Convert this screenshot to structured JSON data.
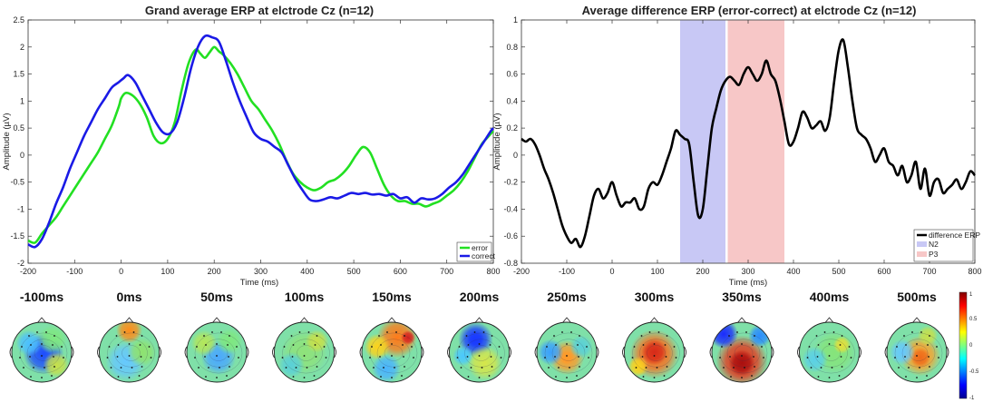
{
  "chart_data": [
    {
      "type": "line",
      "title": "Grand average ERP at elctrode Cz (n=12)",
      "xlabel": "Time (ms)",
      "ylabel": "Amplitude (µV)",
      "xlim": [
        -200,
        800
      ],
      "ylim": [
        -2,
        2.5
      ],
      "xticks": [
        "-200",
        "-100",
        "0",
        "100",
        "200",
        "300",
        "400",
        "500",
        "600",
        "700",
        "800"
      ],
      "yticks": [
        "-2",
        "-1.5",
        "-1",
        "-0.5",
        "0",
        "0.5",
        "1",
        "1.5",
        "2",
        "2.5"
      ],
      "legend_position": "bottom-right",
      "series": [
        {
          "name": "error",
          "color": "#22e022",
          "x": [
            -200,
            -185,
            -170,
            -155,
            -140,
            -125,
            -110,
            -95,
            -80,
            -65,
            -50,
            -35,
            -20,
            -5,
            0,
            10,
            25,
            40,
            55,
            70,
            85,
            100,
            115,
            130,
            145,
            160,
            170,
            180,
            190,
            200,
            210,
            220,
            235,
            250,
            265,
            280,
            295,
            310,
            325,
            340,
            355,
            370,
            385,
            400,
            415,
            430,
            445,
            460,
            475,
            490,
            505,
            520,
            535,
            550,
            565,
            580,
            595,
            610,
            625,
            640,
            655,
            670,
            685,
            700,
            715,
            730,
            745,
            760,
            775,
            790,
            800
          ],
          "values": [
            -1.58,
            -1.62,
            -1.45,
            -1.3,
            -1.15,
            -0.95,
            -0.75,
            -0.55,
            -0.35,
            -0.15,
            0.05,
            0.3,
            0.55,
            0.9,
            1.05,
            1.15,
            1.1,
            0.95,
            0.7,
            0.35,
            0.22,
            0.3,
            0.6,
            1.2,
            1.7,
            1.95,
            1.88,
            1.8,
            1.9,
            2.0,
            1.92,
            1.85,
            1.7,
            1.5,
            1.25,
            1.0,
            0.85,
            0.65,
            0.45,
            0.2,
            -0.1,
            -0.35,
            -0.5,
            -0.6,
            -0.65,
            -0.6,
            -0.5,
            -0.45,
            -0.35,
            -0.2,
            0.0,
            0.15,
            0.05,
            -0.25,
            -0.55,
            -0.75,
            -0.85,
            -0.85,
            -0.9,
            -0.9,
            -0.95,
            -0.9,
            -0.85,
            -0.75,
            -0.65,
            -0.5,
            -0.3,
            -0.05,
            0.2,
            0.35,
            0.45
          ]
        },
        {
          "name": "correct",
          "color": "#1a1ae6",
          "x": [
            -200,
            -185,
            -170,
            -155,
            -140,
            -125,
            -110,
            -95,
            -80,
            -65,
            -50,
            -35,
            -20,
            -5,
            5,
            15,
            30,
            45,
            60,
            75,
            90,
            105,
            120,
            135,
            150,
            165,
            180,
            195,
            210,
            225,
            240,
            255,
            270,
            285,
            300,
            315,
            330,
            345,
            360,
            375,
            390,
            405,
            420,
            435,
            450,
            465,
            480,
            495,
            510,
            525,
            540,
            555,
            570,
            585,
            600,
            615,
            630,
            645,
            660,
            675,
            690,
            705,
            720,
            735,
            750,
            765,
            780,
            795,
            800
          ],
          "values": [
            -1.65,
            -1.7,
            -1.55,
            -1.25,
            -0.9,
            -0.6,
            -0.25,
            0.05,
            0.35,
            0.6,
            0.85,
            1.05,
            1.25,
            1.35,
            1.42,
            1.48,
            1.35,
            1.1,
            0.85,
            0.6,
            0.42,
            0.4,
            0.6,
            1.05,
            1.6,
            2.0,
            2.2,
            2.18,
            2.1,
            1.75,
            1.35,
            1.0,
            0.7,
            0.42,
            0.3,
            0.25,
            0.15,
            0.05,
            -0.2,
            -0.45,
            -0.65,
            -0.82,
            -0.85,
            -0.82,
            -0.78,
            -0.8,
            -0.75,
            -0.7,
            -0.72,
            -0.7,
            -0.73,
            -0.72,
            -0.75,
            -0.72,
            -0.8,
            -0.78,
            -0.88,
            -0.8,
            -0.82,
            -0.8,
            -0.72,
            -0.6,
            -0.5,
            -0.35,
            -0.15,
            0.05,
            0.25,
            0.45,
            0.5
          ]
        }
      ]
    },
    {
      "type": "line",
      "title": "Average difference ERP (error-correct) at elctrode Cz (n=12)",
      "xlabel": "Time (ms)",
      "ylabel": "Amplitude (µV)",
      "xlim": [
        -200,
        800
      ],
      "ylim": [
        -0.8,
        1
      ],
      "xticks": [
        "-200",
        "-100",
        "0",
        "100",
        "200",
        "300",
        "400",
        "500",
        "600",
        "700",
        "800"
      ],
      "yticks": [
        "-0.8",
        "-0.6",
        "-0.4",
        "-0.2",
        "0",
        "0.2",
        "0.4",
        "0.6",
        "0.8",
        "1"
      ],
      "legend_position": "bottom-right",
      "shaded_regions": [
        {
          "name": "N2",
          "x_start": 150,
          "x_end": 250,
          "color": "#c8c8f5"
        },
        {
          "name": "P3",
          "x_start": 255,
          "x_end": 380,
          "color": "#f7c7c7"
        }
      ],
      "series": [
        {
          "name": "difference ERP",
          "color": "#000000",
          "x": [
            -200,
            -190,
            -180,
            -170,
            -160,
            -150,
            -140,
            -130,
            -120,
            -110,
            -100,
            -90,
            -80,
            -70,
            -60,
            -50,
            -40,
            -30,
            -20,
            -10,
            0,
            10,
            20,
            30,
            40,
            50,
            60,
            70,
            80,
            90,
            100,
            110,
            120,
            130,
            140,
            150,
            160,
            170,
            180,
            190,
            200,
            210,
            220,
            230,
            240,
            250,
            260,
            270,
            280,
            290,
            300,
            310,
            320,
            330,
            340,
            350,
            360,
            370,
            380,
            390,
            400,
            410,
            420,
            430,
            440,
            450,
            460,
            470,
            480,
            490,
            500,
            510,
            520,
            530,
            540,
            550,
            560,
            570,
            580,
            590,
            600,
            610,
            620,
            630,
            640,
            650,
            660,
            670,
            680,
            690,
            700,
            710,
            720,
            730,
            740,
            750,
            760,
            770,
            780,
            790,
            800
          ],
          "values": [
            0.12,
            0.1,
            0.12,
            0.08,
            0.0,
            -0.1,
            -0.18,
            -0.28,
            -0.4,
            -0.52,
            -0.6,
            -0.65,
            -0.62,
            -0.68,
            -0.6,
            -0.45,
            -0.3,
            -0.25,
            -0.32,
            -0.28,
            -0.2,
            -0.3,
            -0.38,
            -0.35,
            -0.35,
            -0.32,
            -0.4,
            -0.38,
            -0.25,
            -0.2,
            -0.22,
            -0.15,
            -0.05,
            0.05,
            0.18,
            0.15,
            0.12,
            0.08,
            -0.2,
            -0.45,
            -0.4,
            -0.1,
            0.2,
            0.35,
            0.48,
            0.55,
            0.58,
            0.55,
            0.52,
            0.6,
            0.65,
            0.6,
            0.55,
            0.6,
            0.7,
            0.6,
            0.55,
            0.42,
            0.25,
            0.08,
            0.1,
            0.2,
            0.32,
            0.28,
            0.2,
            0.22,
            0.25,
            0.18,
            0.28,
            0.55,
            0.78,
            0.85,
            0.65,
            0.4,
            0.2,
            0.15,
            0.12,
            0.05,
            -0.05,
            0.0,
            0.05,
            -0.05,
            -0.08,
            -0.15,
            -0.08,
            -0.2,
            -0.15,
            -0.05,
            -0.25,
            -0.1,
            -0.3,
            -0.2,
            -0.18,
            -0.28,
            -0.25,
            -0.22,
            -0.18,
            -0.25,
            -0.2,
            -0.12,
            -0.15
          ]
        }
      ],
      "legend_entries": [
        "difference ERP",
        "N2",
        "P3"
      ]
    }
  ],
  "topomaps": {
    "labels": [
      "-100ms",
      "0ms",
      "50ms",
      "100ms",
      "150ms",
      "200ms",
      "250ms",
      "300ms",
      "350ms",
      "400ms",
      "500ms"
    ],
    "colorbar_ticks": [
      "1",
      "0.5",
      "0",
      "-0.5",
      "-1"
    ]
  }
}
